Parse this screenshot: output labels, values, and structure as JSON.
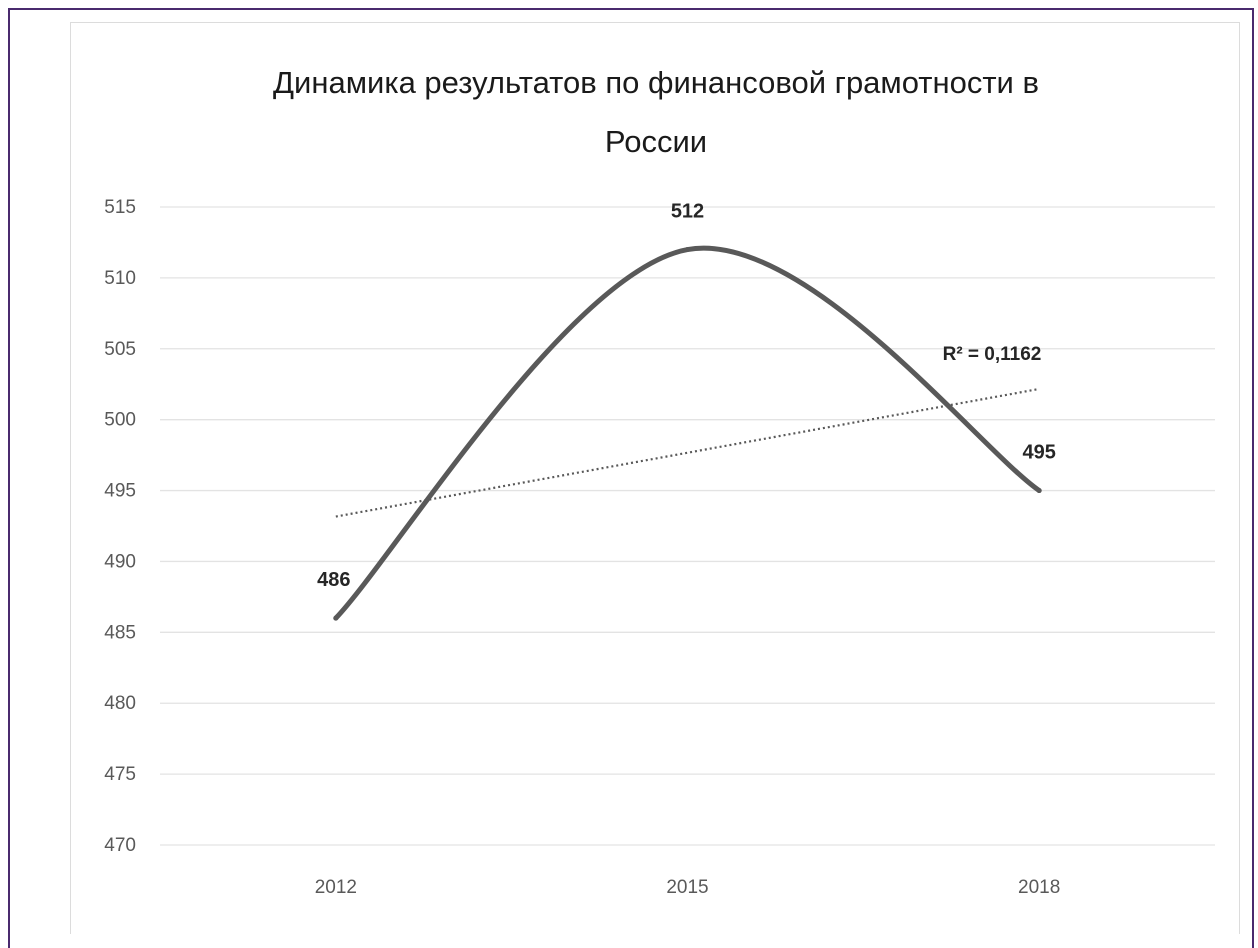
{
  "chart_data": {
    "type": "line",
    "title_line1": "Динамика результатов по финансовой грамотности в",
    "title_line2": "России",
    "categories": [
      "2012",
      "2015",
      "2018"
    ],
    "series": [
      {
        "values": [
          486,
          512,
          495
        ],
        "color": "#595959",
        "smooth": true,
        "data_labels": [
          "486",
          "512",
          "495"
        ]
      }
    ],
    "trendline": {
      "type": "linear",
      "style": "dotted",
      "color": "#595959",
      "r_squared_label": "R² = 0,1162"
    },
    "y_ticks": [
      "515",
      "510",
      "505",
      "500",
      "495",
      "490",
      "485",
      "480",
      "475",
      "470"
    ],
    "ylim": [
      470,
      515
    ],
    "grid": true,
    "legend": "none"
  },
  "colors": {
    "frame": "#4a2a6e",
    "gridline": "#e3e3e3",
    "series": "#595959"
  }
}
